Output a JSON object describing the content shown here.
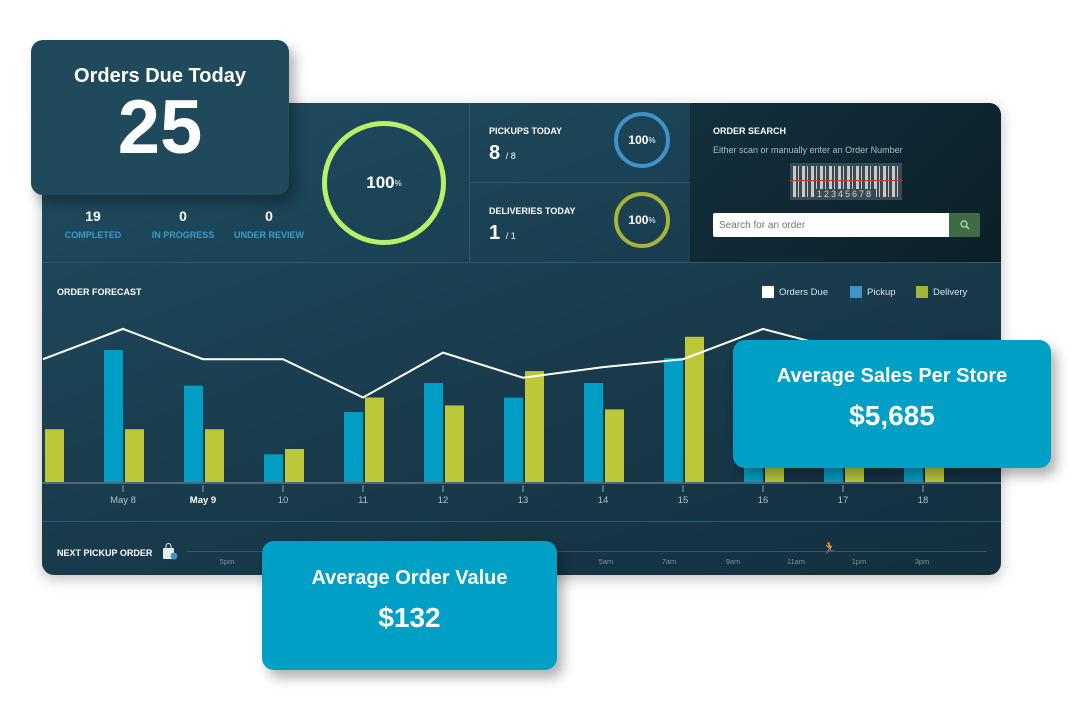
{
  "orders_card": {
    "title": "Orders Due Today",
    "value": "25"
  },
  "stats": [
    {
      "value": "19",
      "label": "COMPLETED"
    },
    {
      "value": "0",
      "label": "IN PROGRESS"
    },
    {
      "value": "0",
      "label": "UNDER REVIEW"
    }
  ],
  "overall_ring": {
    "value": "100",
    "unit": "%",
    "percent": 100,
    "color": "#b8f06a"
  },
  "pickups": {
    "label": "PICKUPS TODAY",
    "done": "8",
    "total": "/ 8",
    "ring_value": "100",
    "unit": "%",
    "percent": 100,
    "color": "#3e93c8"
  },
  "deliveries": {
    "label": "DELIVERIES TODAY",
    "done": "1",
    "total": "/ 1",
    "ring_value": "100",
    "unit": "%",
    "percent": 100,
    "color": "#a6b43a"
  },
  "order_search": {
    "title": "ORDER SEARCH",
    "subtitle": "Either scan or manually enter an Order Number",
    "barcode_number": "12345678",
    "placeholder": "Search for an order",
    "search_icon": "search-icon"
  },
  "forecast": {
    "title": "ORDER FORECAST"
  },
  "chart_data": {
    "type": "bar",
    "title": "ORDER FORECAST",
    "categories": [
      "",
      "May 8",
      "May 9",
      "10",
      "11",
      "12",
      "13",
      "14",
      "15",
      "16",
      "17",
      "18"
    ],
    "highlight_category": "May 9",
    "series": [
      {
        "name": "Orders Due",
        "type": "line",
        "color": "#ffffff",
        "values": [
          9.3,
          11.6,
          9.3,
          9.3,
          6.4,
          9.8,
          7.9,
          8.7,
          9.3,
          11.6,
          10,
          9
        ]
      },
      {
        "name": "Pickup",
        "type": "bar",
        "color": "#009ec4",
        "values": [
          null,
          10,
          7.3,
          2.1,
          5.3,
          7.5,
          6.4,
          7.5,
          9.4,
          3,
          3,
          3
        ]
      },
      {
        "name": "Delivery",
        "type": "bar",
        "color": "#bcc83a",
        "values": [
          4,
          4,
          4,
          2.5,
          6.4,
          5.8,
          8.4,
          5.5,
          11,
          3,
          3,
          3
        ]
      }
    ],
    "ylim": [
      0,
      12
    ],
    "legend": "top-right",
    "grid": false
  },
  "timeline": {
    "label": "NEXT PICKUP ORDER",
    "ticks": [
      "5pm",
      "5am",
      "7am",
      "9am",
      "11am",
      "1pm",
      "3pm"
    ],
    "bag_icon": "shopping-bag-icon",
    "runner_icon": "runner-icon"
  },
  "sales_card": {
    "title": "Average Sales Per Store",
    "value": "$5,685"
  },
  "aov_card": {
    "title": "Average Order Value",
    "value": "$132"
  }
}
